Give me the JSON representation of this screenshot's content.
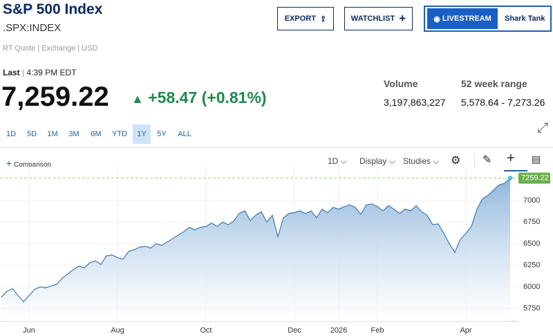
{
  "header": {
    "title": "S&P 500 Index",
    "symbol": ".SPX:INDEX",
    "source": "RT Quote | Exchange | USD",
    "last_label": "Last",
    "time": "4:39 PM EDT",
    "price": "7,259.22",
    "change": "+58.47 (+0.81%)",
    "volume_label": "Volume",
    "volume": "3,197,863,227",
    "range_label": "52 week range",
    "range": "5,578.64 - 7,273.26"
  },
  "buttons": {
    "export": "EXPORT",
    "watchlist": "WATCHLIST",
    "livestream": "LIVESTREAM",
    "show": "Shark Tank"
  },
  "ranges": [
    "1D",
    "5D",
    "1M",
    "3M",
    "6M",
    "YTD",
    "1Y",
    "5Y",
    "ALL"
  ],
  "toolbar": {
    "comparison": "Comparison",
    "interval": "1D",
    "display": "Display",
    "studies": "Studies"
  },
  "chart_data": {
    "type": "area",
    "color": "#4a7fb5",
    "grid": true,
    "categories": [
      null,
      null,
      null,
      null,
      null,
      "Jun",
      null,
      null,
      null,
      null,
      null,
      null,
      null,
      null,
      null,
      null,
      null,
      null,
      null,
      null,
      null,
      "Aug",
      null,
      null,
      null,
      null,
      null,
      null,
      null,
      null,
      null,
      null,
      null,
      null,
      null,
      null,
      null,
      "Oct",
      null,
      null,
      null,
      null,
      null,
      null,
      null,
      null,
      null,
      null,
      null,
      null,
      null,
      null,
      null,
      "Dec",
      null,
      null,
      null,
      null,
      null,
      null,
      null,
      "2026",
      null,
      null,
      null,
      null,
      null,
      null,
      "Feb",
      null,
      null,
      null,
      null,
      null,
      null,
      null,
      null,
      null,
      null,
      null,
      null,
      null,
      null,
      null,
      "Apr",
      null,
      null,
      null,
      null,
      null,
      null,
      null,
      null
    ],
    "values": [
      5880,
      5950,
      5980,
      5900,
      5830,
      5900,
      5970,
      6000,
      5990,
      6010,
      6030,
      6100,
      6150,
      6200,
      6240,
      6220,
      6280,
      6300,
      6260,
      6360,
      6370,
      6340,
      6320,
      6410,
      6430,
      6460,
      6470,
      6450,
      6500,
      6480,
      6520,
      6560,
      6600,
      6640,
      6690,
      6660,
      6690,
      6700,
      6740,
      6700,
      6750,
      6720,
      6760,
      6850,
      6880,
      6770,
      6830,
      6870,
      6750,
      6830,
      6580,
      6800,
      6850,
      6860,
      6880,
      6850,
      6880,
      6800,
      6900,
      6860,
      6920,
      6900,
      6930,
      6950,
      6920,
      6840,
      6950,
      6960,
      6930,
      6880,
      6940,
      6900,
      6850,
      6900,
      6880,
      6940,
      6870,
      6830,
      6720,
      6730,
      6620,
      6500,
      6400,
      6550,
      6620,
      6700,
      6900,
      7020,
      7060,
      7120,
      7180,
      7200,
      7259.22
    ],
    "ylim": [
      5600,
      7320
    ],
    "yticks": [
      5750,
      6000,
      6250,
      6500,
      6750,
      7000
    ]
  }
}
